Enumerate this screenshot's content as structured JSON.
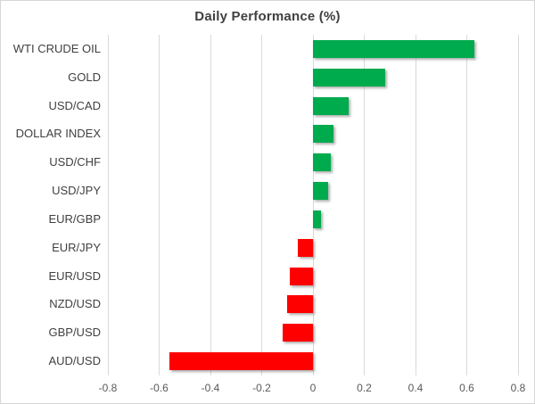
{
  "chart_data": {
    "type": "bar",
    "orientation": "horizontal",
    "title": "Daily Performance (%)",
    "categories": [
      "WTI CRUDE OIL",
      "GOLD",
      "USD/CAD",
      "DOLLAR INDEX",
      "USD/CHF",
      "USD/JPY",
      "EUR/GBP",
      "EUR/JPY",
      "EUR/USD",
      "NZD/USD",
      "GBP/USD",
      "AUD/USD"
    ],
    "values": [
      0.63,
      0.28,
      0.14,
      0.08,
      0.07,
      0.06,
      0.03,
      -0.06,
      -0.09,
      -0.1,
      -0.12,
      -0.56
    ],
    "xlim": [
      -0.8,
      0.8
    ],
    "xticks": [
      -0.8,
      -0.6,
      -0.4,
      -0.2,
      0,
      0.2,
      0.4,
      0.6,
      0.8
    ],
    "xtick_labels": [
      "-0.8",
      "-0.6",
      "-0.4",
      "-0.2",
      "0",
      "0.2",
      "0.4",
      "0.6",
      "0.8"
    ],
    "grid": "vertical",
    "legend": "none",
    "xlabel": "",
    "ylabel": "",
    "colors": {
      "positive": "#00ab4e",
      "negative": "#ff0000",
      "gridline": "#d9d9d9",
      "title_text": "#404040",
      "category_text": "#404040",
      "tick_text": "#595959",
      "background": "#ffffff",
      "border": "#d6d6d6"
    }
  }
}
